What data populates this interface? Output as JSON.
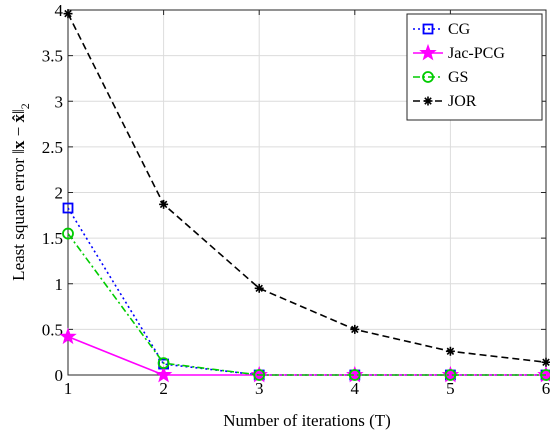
{
  "chart_data": {
    "type": "line",
    "xlabel": "Number of iterations (T)",
    "ylabel": "Least square error ||x − x̂||₂",
    "ylabel_parts": {
      "lead": "Least square error ",
      "norm_open": "‖",
      "x": "x",
      "minus": " − ",
      "xhat": "x̂",
      "norm_close": "‖",
      "sub": "2"
    },
    "xlim": [
      1,
      6
    ],
    "ylim": [
      0,
      4
    ],
    "x_ticks": [
      "1",
      "2",
      "3",
      "4",
      "5",
      "6"
    ],
    "y_ticks": [
      "0",
      "0.5",
      "1",
      "1.5",
      "2",
      "2.5",
      "3",
      "3.5",
      "4"
    ],
    "grid": true,
    "legend_position": "top-right",
    "x": [
      1,
      2,
      3,
      4,
      5,
      6
    ],
    "series": [
      {
        "name": "CG",
        "values": [
          1.83,
          0.12,
          0.0,
          0.0,
          0.0,
          0.0
        ],
        "color": "#0000ff",
        "dash": "2,3",
        "marker": "square"
      },
      {
        "name": "Jac-PCG",
        "values": [
          0.42,
          0.0,
          0.0,
          0.0,
          0.0,
          0.0
        ],
        "color": "#ff00ff",
        "dash": "",
        "marker": "star"
      },
      {
        "name": "GS",
        "values": [
          1.55,
          0.13,
          0.0,
          0.0,
          0.0,
          0.0
        ],
        "color": "#00cc00",
        "dash": "7,3,2,3",
        "marker": "circle"
      },
      {
        "name": "JOR",
        "values": [
          3.96,
          1.87,
          0.95,
          0.5,
          0.26,
          0.14
        ],
        "color": "#000000",
        "dash": "7,4",
        "marker": "asterisk"
      }
    ]
  }
}
